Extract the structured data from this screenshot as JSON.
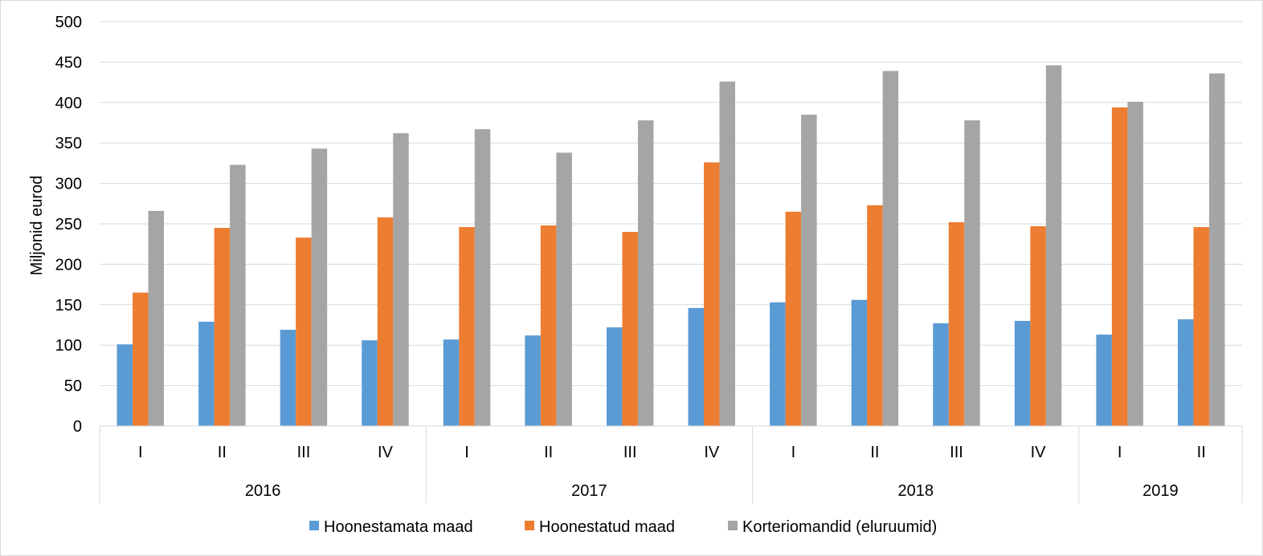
{
  "chart_data": {
    "type": "bar",
    "ylabel": "Miljonid eurod",
    "xlabel": "",
    "ylim": [
      0,
      500
    ],
    "yticks": [
      0,
      50,
      100,
      150,
      200,
      250,
      300,
      350,
      400,
      450,
      500
    ],
    "grid": true,
    "legend_position": "bottom",
    "categories": [
      "I",
      "II",
      "III",
      "IV",
      "I",
      "II",
      "III",
      "IV",
      "I",
      "II",
      "III",
      "IV",
      "I",
      "II"
    ],
    "groups": [
      {
        "label": "2016",
        "count": 4
      },
      {
        "label": "2017",
        "count": 4
      },
      {
        "label": "2018",
        "count": 4
      },
      {
        "label": "2019",
        "count": 2
      }
    ],
    "series": [
      {
        "name": "Hoonestamata maad",
        "color": "#5b9bd5",
        "values": [
          101,
          129,
          119,
          106,
          107,
          112,
          122,
          146,
          153,
          156,
          127,
          130,
          113,
          132
        ]
      },
      {
        "name": "Hoonestatud maad",
        "color": "#ed7d31",
        "values": [
          165,
          245,
          233,
          258,
          246,
          248,
          240,
          326,
          265,
          273,
          252,
          247,
          394,
          246
        ]
      },
      {
        "name": "Korteriomandid (eluruumid)",
        "color": "#a5a5a5",
        "values": [
          266,
          323,
          343,
          362,
          367,
          338,
          378,
          426,
          385,
          439,
          378,
          446,
          401,
          436
        ]
      }
    ]
  }
}
